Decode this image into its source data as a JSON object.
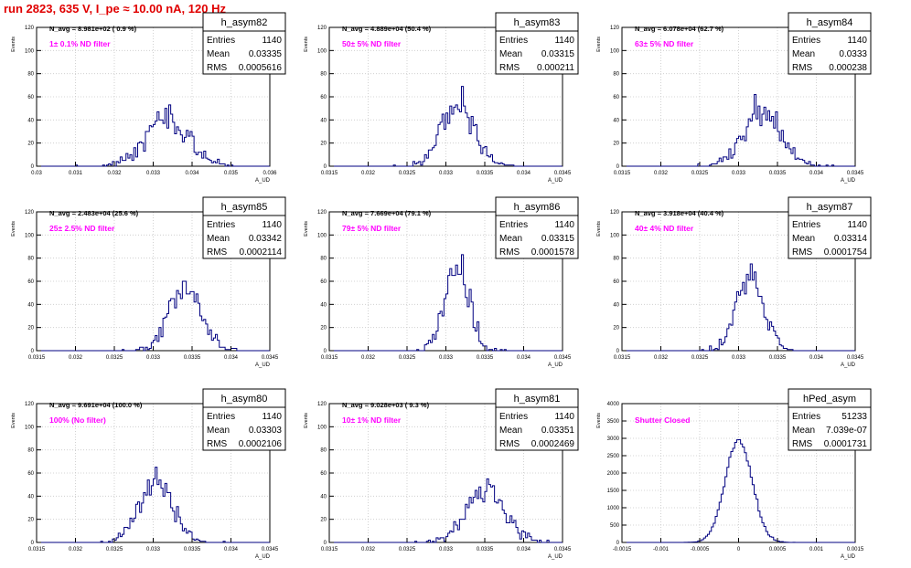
{
  "run_title": "run 2823,   635 V, I_pe ≈ 10.00 nA, 120 Hz",
  "axis_titles": {
    "y": "Events",
    "x": "A_UD"
  },
  "colors": {
    "title": "#e00000",
    "filter_label": "#ff00ff",
    "histogram": "#000080",
    "grid": "#c8c8c8",
    "axis": "#000000"
  },
  "chart_data": [
    {
      "type": "bar",
      "name": "h_asym82",
      "navg": "N_avg = 8.981e+02 ( 0.9 %)",
      "filter": "1± 0.1% ND filter",
      "stats": {
        "entries": "1140",
        "mean": "0.03335",
        "rms": "0.0005616"
      },
      "xlim": [
        0.03,
        0.036
      ],
      "ylim": [
        0,
        120
      ],
      "x_ticks": [
        "0.03",
        "0.031",
        "0.032",
        "0.033",
        "0.034",
        "0.035",
        "0.036"
      ],
      "y_ticks": [
        "0",
        "20",
        "40",
        "60",
        "80",
        "100",
        "120"
      ],
      "dist": {
        "n": 1140,
        "mean": 0.03335,
        "rms": 0.0005616,
        "bins": 120,
        "seed": 82
      }
    },
    {
      "type": "bar",
      "name": "h_asym83",
      "navg": "N_avg = 4.889e+04 (50.4 %)",
      "filter": "50± 5% ND filter",
      "stats": {
        "entries": "1140",
        "mean": "0.03315",
        "rms": "0.000211"
      },
      "xlim": [
        0.0315,
        0.0345
      ],
      "ylim": [
        0,
        120
      ],
      "x_ticks": [
        "0.0315",
        "0.032",
        "0.0325",
        "0.033",
        "0.0335",
        "0.034",
        "0.0345"
      ],
      "y_ticks": [
        "0",
        "20",
        "40",
        "60",
        "80",
        "100",
        "120"
      ],
      "dist": {
        "n": 1140,
        "mean": 0.03315,
        "rms": 0.000211,
        "bins": 120,
        "seed": 83
      }
    },
    {
      "type": "bar",
      "name": "h_asym84",
      "navg": "N_avg = 6.078e+04 (62.7 %)",
      "filter": "63± 5% ND filter",
      "stats": {
        "entries": "1140",
        "mean": "0.0333",
        "rms": "0.000238"
      },
      "xlim": [
        0.0315,
        0.0345
      ],
      "ylim": [
        0,
        120
      ],
      "x_ticks": [
        "0.0315",
        "0.032",
        "0.0325",
        "0.033",
        "0.0335",
        "0.034",
        "0.0345"
      ],
      "y_ticks": [
        "0",
        "20",
        "40",
        "60",
        "80",
        "100",
        "120"
      ],
      "dist": {
        "n": 1140,
        "mean": 0.0333,
        "rms": 0.000238,
        "bins": 120,
        "seed": 84
      }
    },
    {
      "type": "bar",
      "name": "h_asym85",
      "navg": "N_avg = 2.483e+04 (25.6 %)",
      "filter": "25± 2.5% ND filter",
      "stats": {
        "entries": "1140",
        "mean": "0.03342",
        "rms": "0.0002114"
      },
      "xlim": [
        0.0315,
        0.0345
      ],
      "ylim": [
        0,
        120
      ],
      "x_ticks": [
        "0.0315",
        "0.032",
        "0.0325",
        "0.033",
        "0.0335",
        "0.034",
        "0.0345"
      ],
      "y_ticks": [
        "0",
        "20",
        "40",
        "60",
        "80",
        "100",
        "120"
      ],
      "dist": {
        "n": 1140,
        "mean": 0.03342,
        "rms": 0.0002114,
        "bins": 120,
        "seed": 85
      }
    },
    {
      "type": "bar",
      "name": "h_asym86",
      "navg": "N_avg = 7.669e+04 (79.1 %)",
      "filter": "79± 5% ND filter",
      "stats": {
        "entries": "1140",
        "mean": "0.03315",
        "rms": "0.0001578"
      },
      "xlim": [
        0.0315,
        0.0345
      ],
      "ylim": [
        0,
        120
      ],
      "x_ticks": [
        "0.0315",
        "0.032",
        "0.0325",
        "0.033",
        "0.0335",
        "0.034",
        "0.0345"
      ],
      "y_ticks": [
        "0",
        "20",
        "40",
        "60",
        "80",
        "100",
        "120"
      ],
      "dist": {
        "n": 1140,
        "mean": 0.03315,
        "rms": 0.0001578,
        "bins": 120,
        "seed": 86
      }
    },
    {
      "type": "bar",
      "name": "h_asym87",
      "navg": "N_avg = 3.918e+04 (40.4 %)",
      "filter": "40± 4% ND filter",
      "stats": {
        "entries": "1140",
        "mean": "0.03314",
        "rms": "0.0001754"
      },
      "xlim": [
        0.0315,
        0.0345
      ],
      "ylim": [
        0,
        120
      ],
      "x_ticks": [
        "0.0315",
        "0.032",
        "0.0325",
        "0.033",
        "0.0335",
        "0.034",
        "0.0345"
      ],
      "y_ticks": [
        "0",
        "20",
        "40",
        "60",
        "80",
        "100",
        "120"
      ],
      "dist": {
        "n": 1140,
        "mean": 0.03314,
        "rms": 0.0001754,
        "bins": 120,
        "seed": 87
      }
    },
    {
      "type": "bar",
      "name": "h_asym80",
      "navg": "N_avg = 9.691e+04 (100.0 %)",
      "filter": "100% (No filter)",
      "stats": {
        "entries": "1140",
        "mean": "0.03303",
        "rms": "0.0002106"
      },
      "xlim": [
        0.0315,
        0.0345
      ],
      "ylim": [
        0,
        120
      ],
      "x_ticks": [
        "0.0315",
        "0.032",
        "0.0325",
        "0.033",
        "0.0335",
        "0.034",
        "0.0345"
      ],
      "y_ticks": [
        "0",
        "20",
        "40",
        "60",
        "80",
        "100",
        "120"
      ],
      "dist": {
        "n": 1140,
        "mean": 0.03303,
        "rms": 0.0002106,
        "bins": 120,
        "seed": 80
      }
    },
    {
      "type": "bar",
      "name": "h_asym81",
      "navg": "N_avg = 9.028e+03 ( 9.3 %)",
      "filter": "10± 1% ND filter",
      "stats": {
        "entries": "1140",
        "mean": "0.03351",
        "rms": "0.0002469"
      },
      "xlim": [
        0.0315,
        0.0345
      ],
      "ylim": [
        0,
        120
      ],
      "x_ticks": [
        "0.0315",
        "0.032",
        "0.0325",
        "0.033",
        "0.0335",
        "0.034",
        "0.0345"
      ],
      "y_ticks": [
        "0",
        "20",
        "40",
        "60",
        "80",
        "100",
        "120"
      ],
      "dist": {
        "n": 1140,
        "mean": 0.03351,
        "rms": 0.0002469,
        "bins": 120,
        "seed": 81
      }
    },
    {
      "type": "bar",
      "name": "hPed_asym",
      "navg": "",
      "filter": "Shutter Closed",
      "stats": {
        "entries": "51233",
        "mean": "7.039e-07",
        "rms": "0.0001731"
      },
      "xlim": [
        -0.0015,
        0.0015
      ],
      "ylim": [
        0,
        4000
      ],
      "x_ticks": [
        "-0.0015",
        "-0.001",
        "-0.0005",
        "0",
        "0.0005",
        "0.001",
        "0.0015"
      ],
      "y_ticks": [
        "0",
        "500",
        "1000",
        "1500",
        "2000",
        "2500",
        "3000",
        "3500",
        "4000"
      ],
      "dist": {
        "n": 51233,
        "mean": 7.039e-07,
        "rms": 0.0001731,
        "bins": 120,
        "seed": 99
      }
    }
  ]
}
